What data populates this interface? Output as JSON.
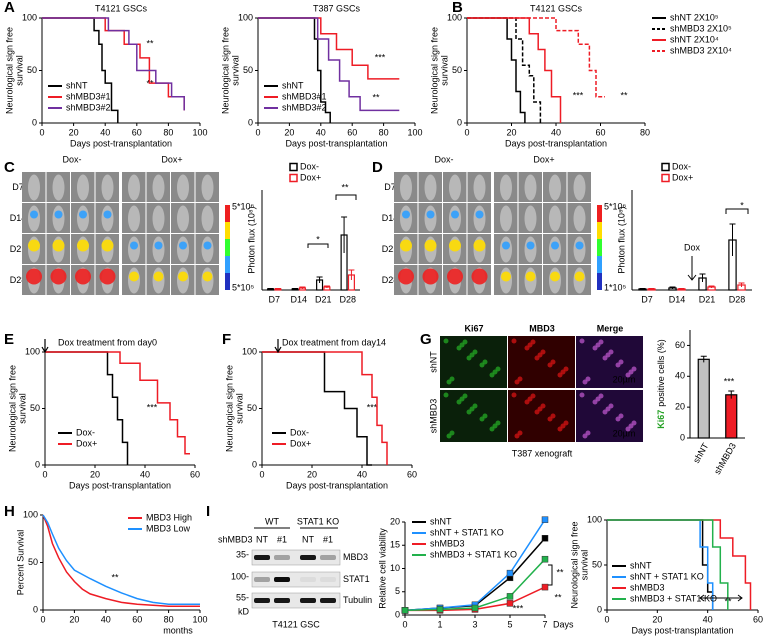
{
  "panel_letters": [
    "A",
    "B",
    "C",
    "D",
    "E",
    "F",
    "G",
    "H",
    "I"
  ],
  "plots": [
    {
      "type": "km",
      "title": "T4121 GSCs",
      "xlabel": "Days post-transplantation",
      "ylabel": [
        "Neurological sign free",
        "survival"
      ],
      "xlim": [
        0,
        100
      ],
      "xticks": [
        0,
        20,
        40,
        60,
        80,
        100
      ],
      "ylim": [
        0,
        100
      ],
      "yticks": [
        0,
        50,
        100
      ],
      "series": [
        {
          "name": "shNT",
          "color": "#000000",
          "x": [
            0,
            33,
            33,
            36,
            36,
            38,
            38,
            40,
            40,
            44,
            44,
            48,
            48
          ],
          "y": [
            100,
            100,
            88,
            88,
            75,
            75,
            50,
            50,
            38,
            38,
            12,
            12,
            0
          ]
        },
        {
          "name": "shMBD3#1",
          "color": "#ee1c25",
          "x": [
            0,
            40,
            40,
            52,
            52,
            62,
            62,
            68,
            68,
            80,
            80,
            90,
            90
          ],
          "y": [
            100,
            100,
            88,
            88,
            75,
            75,
            62,
            62,
            38,
            38,
            25,
            25,
            12
          ]
        },
        {
          "name": "shMBD3#2",
          "color": "#7030a0",
          "x": [
            0,
            42,
            42,
            55,
            55,
            60,
            60,
            72,
            72,
            82,
            82,
            90,
            90
          ],
          "y": [
            100,
            100,
            88,
            88,
            75,
            75,
            50,
            50,
            38,
            38,
            25,
            25,
            12
          ]
        }
      ],
      "annotations": [
        "**",
        "**"
      ]
    },
    {
      "type": "km",
      "title": "T387 GSCs",
      "xlabel": "Days post-transplantation",
      "ylabel": [
        "Neurological sign free",
        "survival"
      ],
      "xlim": [
        0,
        100
      ],
      "xticks": [
        0,
        20,
        40,
        60,
        80,
        100
      ],
      "ylim": [
        0,
        100
      ],
      "yticks": [
        0,
        50,
        100
      ],
      "series": [
        {
          "name": "shNT",
          "color": "#000000",
          "x": [
            0,
            36,
            36,
            38,
            38,
            40,
            40,
            43,
            43,
            46,
            46
          ],
          "y": [
            100,
            100,
            80,
            80,
            50,
            50,
            20,
            20,
            10,
            10,
            0
          ]
        },
        {
          "name": "shMBD3#1",
          "color": "#ee1c25",
          "x": [
            0,
            40,
            40,
            50,
            50,
            60,
            60,
            70,
            70,
            90
          ],
          "y": [
            100,
            100,
            85,
            85,
            70,
            70,
            55,
            55,
            42,
            42
          ]
        },
        {
          "name": "shMBD3#2",
          "color": "#7030a0",
          "x": [
            0,
            38,
            38,
            45,
            45,
            52,
            52,
            58,
            58,
            65,
            65,
            90
          ],
          "y": [
            100,
            100,
            80,
            80,
            60,
            60,
            40,
            40,
            25,
            25,
            12,
            12
          ]
        }
      ],
      "annotations": [
        "***",
        "**"
      ]
    },
    {
      "type": "km",
      "title": "T4121 GSCs",
      "xlabel": "Days post-transplantation",
      "ylabel": [
        "Neurological sign free",
        "survival"
      ],
      "xlim": [
        0,
        80
      ],
      "xticks": [
        0,
        20,
        40,
        60,
        80
      ],
      "ylim": [
        0,
        100
      ],
      "yticks": [
        0,
        50,
        100
      ],
      "series": [
        {
          "name": "shNT 2X10⁵",
          "color": "#000000",
          "dash": false,
          "x": [
            0,
            18,
            18,
            20,
            20,
            22,
            22,
            24,
            24,
            26,
            26
          ],
          "y": [
            100,
            100,
            80,
            80,
            60,
            60,
            30,
            30,
            10,
            10,
            0
          ]
        },
        {
          "name": "shMBD3 2X10⁵",
          "color": "#000000",
          "dash": true,
          "x": [
            0,
            22,
            22,
            25,
            25,
            28,
            28,
            30,
            30,
            33,
            33
          ],
          "y": [
            100,
            100,
            80,
            80,
            55,
            55,
            45,
            45,
            20,
            20,
            0
          ]
        },
        {
          "name": "shNT 2X10⁴",
          "color": "#ee1c25",
          "dash": false,
          "x": [
            0,
            28,
            28,
            32,
            32,
            35,
            35,
            38,
            38,
            42,
            42
          ],
          "y": [
            100,
            100,
            85,
            85,
            70,
            70,
            50,
            50,
            25,
            25,
            0
          ]
        },
        {
          "name": "shMBD3 2X10⁴",
          "color": "#ee1c25",
          "dash": true,
          "x": [
            0,
            40,
            40,
            50,
            50,
            55,
            55,
            58,
            58,
            62
          ],
          "y": [
            100,
            100,
            88,
            88,
            75,
            75,
            50,
            50,
            25,
            25
          ]
        }
      ],
      "annotations": [
        "***",
        "**"
      ]
    },
    {
      "type": "bar",
      "ylabel": "Photon flux (10⁸)",
      "categories": [
        "D7",
        "D14",
        "D21",
        "D28"
      ],
      "ylim": [
        0,
        10
      ],
      "series": [
        {
          "name": "Dox-",
          "color": "#000000",
          "values": [
            0.1,
            0.1,
            1.0,
            5.5
          ],
          "errors": [
            0.05,
            0.05,
            0.3,
            1.8
          ]
        },
        {
          "name": "Dox+",
          "color": "#ee1c25",
          "values": [
            0.1,
            0.2,
            0.3,
            1.5
          ],
          "errors": [
            0.05,
            0.1,
            0.1,
            0.5
          ]
        }
      ],
      "annotations": [
        "*",
        "**"
      ]
    },
    {
      "type": "bar",
      "ylabel": "Photon flux (10⁸)",
      "categories": [
        "D7",
        "D14",
        "D21",
        "D28"
      ],
      "ylim": [
        0,
        10
      ],
      "series": [
        {
          "name": "Dox-",
          "color": "#000000",
          "values": [
            0.1,
            0.2,
            1.2,
            5.0
          ],
          "errors": [
            0.05,
            0.1,
            0.4,
            1.6
          ]
        },
        {
          "name": "Dox+",
          "color": "#ee1c25",
          "values": [
            0.1,
            0.1,
            0.3,
            0.5
          ],
          "errors": [
            0.05,
            0.05,
            0.1,
            0.2
          ]
        }
      ],
      "annotations": [
        "Dox",
        "*"
      ]
    },
    {
      "type": "km",
      "xlabel": "Days post-transplantation",
      "ylabel": [
        "Neurological sign free",
        "survival"
      ],
      "xlim": [
        0,
        60
      ],
      "xticks": [
        0,
        20,
        40,
        60
      ],
      "ylim": [
        0,
        100
      ],
      "yticks": [
        0,
        50,
        100
      ],
      "series": [
        {
          "name": "Dox-",
          "color": "#000000",
          "x": [
            0,
            25,
            25,
            27,
            27,
            29,
            29,
            31,
            31,
            33,
            33
          ],
          "y": [
            100,
            100,
            80,
            80,
            60,
            60,
            40,
            40,
            20,
            20,
            0
          ]
        },
        {
          "name": "Dox+",
          "color": "#ee1c25",
          "x": [
            0,
            30,
            30,
            38,
            38,
            45,
            45,
            50,
            50,
            53,
            53,
            56,
            56,
            58
          ],
          "y": [
            100,
            100,
            90,
            90,
            75,
            75,
            55,
            55,
            40,
            40,
            25,
            25,
            10,
            10
          ]
        }
      ],
      "annotations": [
        "Dox treatment from day0",
        "***"
      ]
    },
    {
      "type": "km",
      "xlabel": "Days post-transplantation",
      "ylabel": [
        "Neurological sign free",
        "survival"
      ],
      "xlim": [
        0,
        60
      ],
      "xticks": [
        0,
        20,
        40,
        60
      ],
      "ylim": [
        0,
        100
      ],
      "yticks": [
        0,
        50,
        100
      ],
      "series": [
        {
          "name": "Dox-",
          "color": "#000000",
          "x": [
            0,
            25,
            25,
            33,
            33,
            38,
            38,
            42,
            42,
            44
          ],
          "y": [
            100,
            100,
            65,
            65,
            50,
            50,
            25,
            25,
            0,
            0
          ]
        },
        {
          "name": "Dox+",
          "color": "#ee1c25",
          "x": [
            0,
            40,
            40,
            44,
            44,
            46,
            46,
            48,
            48,
            50,
            50
          ],
          "y": [
            100,
            100,
            80,
            80,
            60,
            60,
            35,
            35,
            20,
            20,
            0
          ]
        }
      ],
      "annotations": [
        "Dox treatment from day14",
        "***"
      ]
    },
    {
      "type": "bar",
      "ylabel": [
        "Ki67",
        "positive cells (%)"
      ],
      "categories": [
        "shNT",
        "shMBD3"
      ],
      "ylim": [
        0,
        70
      ],
      "yticks": [
        0,
        20,
        40,
        60
      ],
      "series": [
        {
          "values": [
            51,
            28
          ],
          "errors": [
            2,
            2.5
          ],
          "colors": [
            "#c0c0c0",
            "#ee1c25"
          ]
        }
      ],
      "annotations": [
        "***"
      ]
    },
    {
      "type": "km",
      "ylabel": "Percent Survival",
      "xlabel": "months",
      "xlim": [
        0,
        100
      ],
      "xticks": [
        0,
        20,
        40,
        60,
        80,
        100
      ],
      "ylim": [
        0,
        100
      ],
      "yticks": [
        0,
        50,
        100
      ],
      "series": [
        {
          "name": "MBD3 High",
          "color": "#ee1c25",
          "x": [
            0,
            3,
            6,
            10,
            15,
            20,
            25,
            30,
            40,
            50,
            60,
            70,
            80,
            100
          ],
          "y": [
            100,
            88,
            70,
            55,
            40,
            30,
            22,
            17,
            12,
            8,
            6,
            5,
            4,
            4
          ]
        },
        {
          "name": "MBD3 Low",
          "color": "#1e90ff",
          "x": [
            0,
            3,
            6,
            10,
            15,
            20,
            30,
            40,
            50,
            60,
            70,
            80,
            90,
            100
          ],
          "y": [
            100,
            92,
            80,
            65,
            52,
            42,
            33,
            25,
            18,
            12,
            8,
            6,
            6,
            6
          ]
        }
      ],
      "annotations": [
        "**"
      ]
    },
    {
      "type": "line",
      "ylabel": "Relative cell viability",
      "xlabel": "Days",
      "categories": [
        "0",
        "1",
        "3",
        "5",
        "7"
      ],
      "ylim": [
        0,
        20
      ],
      "yticks": [
        0,
        5,
        10,
        15,
        20
      ],
      "series": [
        {
          "name": "shNT",
          "color": "#000000",
          "values": [
            1,
            1.5,
            2,
            8,
            16.5
          ]
        },
        {
          "name": "shNT + STAT1 KO",
          "color": "#1e90ff",
          "values": [
            1,
            1.5,
            2.2,
            9,
            20.5
          ]
        },
        {
          "name": "shMBD3",
          "color": "#ee1c25",
          "values": [
            1,
            1,
            1.2,
            2.5,
            6
          ]
        },
        {
          "name": "shMBD3 + STAT1 KO",
          "color": "#22b14c",
          "values": [
            1,
            1.2,
            1.5,
            4,
            12
          ]
        }
      ],
      "annotations": [
        "**",
        "***",
        "**"
      ]
    },
    {
      "type": "km",
      "xlabel": "Days post-transplantation",
      "ylabel": [
        "Neurological sign free",
        "survival"
      ],
      "xlim": [
        0,
        60
      ],
      "xticks": [
        0,
        20,
        40,
        60
      ],
      "ylim": [
        0,
        100
      ],
      "yticks": [
        0,
        50,
        100
      ],
      "series": [
        {
          "name": "shNT",
          "color": "#000000",
          "x": [
            0,
            38,
            38,
            40,
            40,
            42,
            42
          ],
          "y": [
            100,
            100,
            50,
            50,
            20,
            20,
            0
          ]
        },
        {
          "name": "shNT + STAT1 KO",
          "color": "#1e90ff",
          "x": [
            0,
            37,
            37,
            40,
            40,
            42,
            42
          ],
          "y": [
            100,
            100,
            70,
            70,
            30,
            30,
            0
          ]
        },
        {
          "name": "shMBD3",
          "color": "#ee1c25",
          "x": [
            0,
            45,
            45,
            50,
            50,
            55,
            55,
            57,
            57
          ],
          "y": [
            100,
            100,
            80,
            80,
            60,
            60,
            30,
            30,
            0
          ]
        },
        {
          "name": "shMBD3 + STAT1 KO",
          "color": "#22b14c",
          "x": [
            0,
            42,
            42,
            45,
            45,
            48,
            48
          ],
          "y": [
            100,
            100,
            70,
            70,
            30,
            30,
            0
          ]
        }
      ],
      "annotations": [
        "**"
      ]
    }
  ],
  "images": {
    "C": {
      "columns": [
        "Dox-",
        "Dox+"
      ],
      "rows": [
        "D7",
        "D14",
        "D21",
        "D28"
      ],
      "scale": [
        "5*10⁶",
        "5*10⁵"
      ]
    },
    "D": {
      "columns": [
        "Dox-",
        "Dox+"
      ],
      "rows": [
        "D7",
        "D14",
        "D21",
        "D28"
      ],
      "scale": [
        "5*10⁶",
        "1*10⁵"
      ]
    },
    "G": {
      "columns": [
        "Ki67",
        "MBD3",
        "Merge"
      ],
      "rows": [
        "shNT",
        "shMBD3"
      ],
      "scale_bar": "20µm",
      "caption": "T387 xenograft"
    },
    "I": {
      "groups": [
        "WT",
        "STAT1 KO"
      ],
      "row_label": "shMBD3",
      "lanes": [
        "NT",
        "#1",
        "NT",
        "#1"
      ],
      "markers": [
        "35-",
        "100-",
        "55-",
        "kD"
      ],
      "proteins": [
        "MBD3",
        "STAT1",
        "Tubulin"
      ],
      "caption": "T4121 GSC"
    }
  }
}
